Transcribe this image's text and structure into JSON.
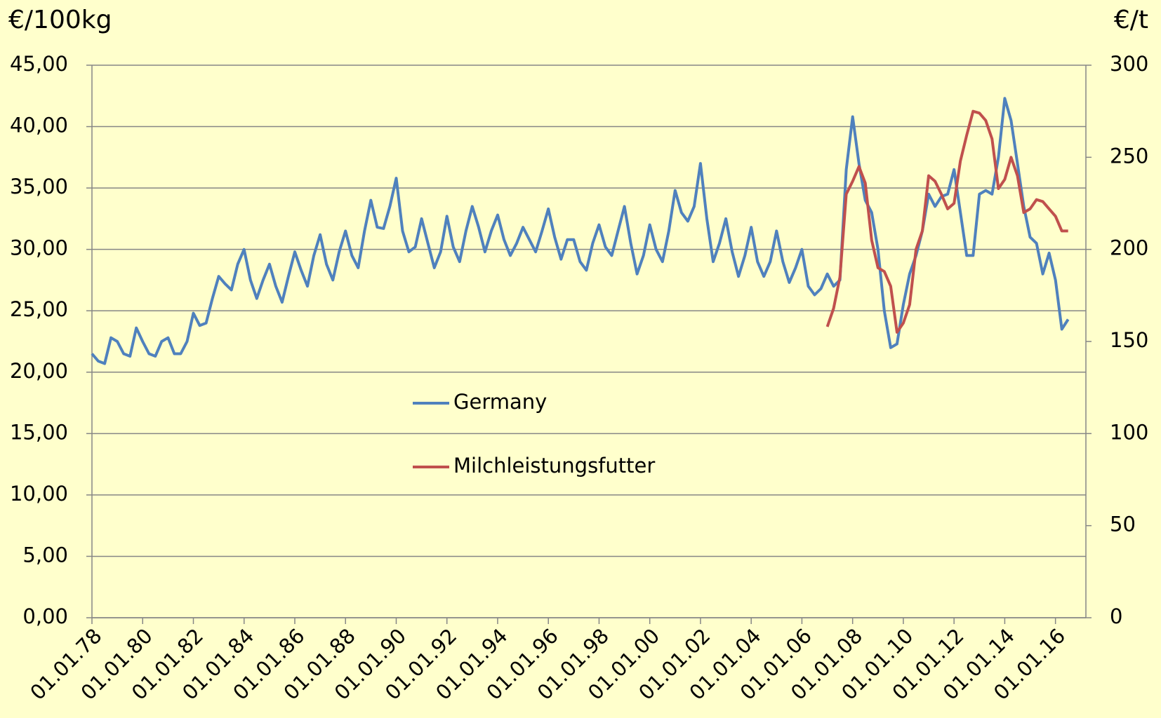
{
  "chart_data": {
    "type": "line",
    "y_label": "€/100kg",
    "y2_label": "€/t",
    "xlim": [
      1978,
      2017.2
    ],
    "xticks": [
      {
        "value": 1978,
        "label": "01.01.78"
      },
      {
        "value": 1980,
        "label": "01.01.80"
      },
      {
        "value": 1982,
        "label": "01.01.82"
      },
      {
        "value": 1984,
        "label": "01.01.84"
      },
      {
        "value": 1986,
        "label": "01.01.86"
      },
      {
        "value": 1988,
        "label": "01.01.88"
      },
      {
        "value": 1990,
        "label": "01.01.90"
      },
      {
        "value": 1992,
        "label": "01.01.92"
      },
      {
        "value": 1994,
        "label": "01.01.94"
      },
      {
        "value": 1996,
        "label": "01.01.96"
      },
      {
        "value": 1998,
        "label": "01.01.98"
      },
      {
        "value": 2000,
        "label": "01.01.00"
      },
      {
        "value": 2002,
        "label": "01.01.02"
      },
      {
        "value": 2004,
        "label": "01.01.04"
      },
      {
        "value": 2006,
        "label": "01.01.06"
      },
      {
        "value": 2008,
        "label": "01.01.08"
      },
      {
        "value": 2010,
        "label": "01.01.10"
      },
      {
        "value": 2012,
        "label": "01.01.12"
      },
      {
        "value": 2014,
        "label": "01.01.14"
      },
      {
        "value": 2016,
        "label": "01.01.16"
      }
    ],
    "ylim": [
      0,
      45
    ],
    "yticks": [
      {
        "value": 0,
        "label": "0,00"
      },
      {
        "value": 5,
        "label": "5,00"
      },
      {
        "value": 10,
        "label": "10,00"
      },
      {
        "value": 15,
        "label": "15,00"
      },
      {
        "value": 20,
        "label": "20,00"
      },
      {
        "value": 25,
        "label": "25,00"
      },
      {
        "value": 30,
        "label": "30,00"
      },
      {
        "value": 35,
        "label": "35,00"
      },
      {
        "value": 40,
        "label": "40,00"
      },
      {
        "value": 45,
        "label": "45,00"
      }
    ],
    "y2lim": [
      0,
      300
    ],
    "y2ticks": [
      0,
      50,
      100,
      150,
      200,
      250,
      300
    ],
    "grid": true,
    "legend": "center-left",
    "x": [
      1978,
      1978.25,
      1978.5,
      1978.75,
      1979,
      1979.25,
      1979.5,
      1979.75,
      1980,
      1980.25,
      1980.5,
      1980.75,
      1981,
      1981.25,
      1981.5,
      1981.75,
      1982,
      1982.25,
      1982.5,
      1982.75,
      1983,
      1983.25,
      1983.5,
      1983.75,
      1984,
      1984.25,
      1984.5,
      1984.75,
      1985,
      1985.25,
      1985.5,
      1985.75,
      1986,
      1986.25,
      1986.5,
      1986.75,
      1987,
      1987.25,
      1987.5,
      1987.75,
      1988,
      1988.25,
      1988.5,
      1988.75,
      1989,
      1989.25,
      1989.5,
      1989.75,
      1990,
      1990.25,
      1990.5,
      1990.75,
      1991,
      1991.25,
      1991.5,
      1991.75,
      1992,
      1992.25,
      1992.5,
      1992.75,
      1993,
      1993.25,
      1993.5,
      1993.75,
      1994,
      1994.25,
      1994.5,
      1994.75,
      1995,
      1995.25,
      1995.5,
      1995.75,
      1996,
      1996.25,
      1996.5,
      1996.75,
      1997,
      1997.25,
      1997.5,
      1997.75,
      1998,
      1998.25,
      1998.5,
      1998.75,
      1999,
      1999.25,
      1999.5,
      1999.75,
      2000,
      2000.25,
      2000.5,
      2000.75,
      2001,
      2001.25,
      2001.5,
      2001.75,
      2002,
      2002.25,
      2002.5,
      2002.75,
      2003,
      2003.25,
      2003.5,
      2003.75,
      2004,
      2004.25,
      2004.5,
      2004.75,
      2005,
      2005.25,
      2005.5,
      2005.75,
      2006,
      2006.25,
      2006.5,
      2006.75,
      2007,
      2007.25,
      2007.5,
      2007.75,
      2008,
      2008.25,
      2008.5,
      2008.75,
      2009,
      2009.25,
      2009.5,
      2009.75,
      2010,
      2010.25,
      2010.5,
      2010.75,
      2011,
      2011.25,
      2011.5,
      2011.75,
      2012,
      2012.25,
      2012.5,
      2012.75,
      2013,
      2013.25,
      2013.5,
      2013.75,
      2014,
      2014.25,
      2014.5,
      2014.75,
      2015,
      2015.25,
      2015.5,
      2015.75,
      2016,
      2016.25,
      2016.5
    ],
    "series": [
      {
        "name": "Germany",
        "color": "#4f81bd",
        "values": [
          21.5,
          20.9,
          20.7,
          22.8,
          22.5,
          21.5,
          21.3,
          23.6,
          22.5,
          21.5,
          21.3,
          22.5,
          22.8,
          21.5,
          21.5,
          22.5,
          24.8,
          23.8,
          24.0,
          26.0,
          27.8,
          27.2,
          26.7,
          28.8,
          30.0,
          27.5,
          26.0,
          27.5,
          28.8,
          27.0,
          25.7,
          27.8,
          29.8,
          28.3,
          27.0,
          29.5,
          31.2,
          28.8,
          27.5,
          29.8,
          31.5,
          29.5,
          28.5,
          31.5,
          34.0,
          31.8,
          31.7,
          33.5,
          35.8,
          31.5,
          29.8,
          30.2,
          32.5,
          30.5,
          28.5,
          29.8,
          32.7,
          30.2,
          29.0,
          31.5,
          33.5,
          31.8,
          29.8,
          31.5,
          32.8,
          30.8,
          29.5,
          30.5,
          31.8,
          30.8,
          29.8,
          31.5,
          33.3,
          31.0,
          29.2,
          30.8,
          30.8,
          29.0,
          28.3,
          30.5,
          32.0,
          30.2,
          29.5,
          31.5,
          33.5,
          30.5,
          28.0,
          29.5,
          32.0,
          30.0,
          29.0,
          31.5,
          34.8,
          33.0,
          32.3,
          33.5,
          37.0,
          32.5,
          29.0,
          30.5,
          32.5,
          29.8,
          27.8,
          29.5,
          31.8,
          29.0,
          27.8,
          29.0,
          31.5,
          29.0,
          27.3,
          28.5,
          30.0,
          27.0,
          26.3,
          26.8,
          28.0,
          27.0,
          27.5,
          36.5,
          40.8,
          37.0,
          34.0,
          33.0,
          30.0,
          25.0,
          22.0,
          22.3,
          25.5,
          28.0,
          29.5,
          31.5,
          34.5,
          33.5,
          34.3,
          34.5,
          36.5,
          33.0,
          29.5,
          29.5,
          34.5,
          34.8,
          34.5,
          37.5,
          42.3,
          40.5,
          37.0,
          33.5,
          31.0,
          30.5,
          28.0,
          29.7,
          27.5,
          23.5,
          24.3
        ]
      },
      {
        "name": "Milchleistungsfutter",
        "color": "#c0504d",
        "axis": "y2",
        "values": [
          null,
          null,
          null,
          null,
          null,
          null,
          null,
          null,
          null,
          null,
          null,
          null,
          null,
          null,
          null,
          null,
          null,
          null,
          null,
          null,
          null,
          null,
          null,
          null,
          null,
          null,
          null,
          null,
          null,
          null,
          null,
          null,
          null,
          null,
          null,
          null,
          null,
          null,
          null,
          null,
          null,
          null,
          null,
          null,
          null,
          null,
          null,
          null,
          null,
          null,
          null,
          null,
          null,
          null,
          null,
          null,
          null,
          null,
          null,
          null,
          null,
          null,
          null,
          null,
          null,
          null,
          null,
          null,
          null,
          null,
          null,
          null,
          null,
          null,
          null,
          null,
          null,
          null,
          null,
          null,
          null,
          null,
          null,
          null,
          null,
          null,
          null,
          null,
          null,
          null,
          null,
          null,
          null,
          null,
          null,
          null,
          null,
          null,
          null,
          null,
          null,
          null,
          null,
          null,
          null,
          null,
          null,
          null,
          null,
          null,
          null,
          null,
          null,
          null,
          null,
          null,
          158,
          168,
          185,
          230,
          237,
          245,
          236,
          205,
          190,
          188,
          180,
          155,
          160,
          170,
          200,
          210,
          240,
          237,
          230,
          222,
          225,
          248,
          262,
          275,
          274,
          270,
          260,
          233,
          238,
          250,
          240,
          220,
          222,
          227,
          226,
          222,
          218,
          210,
          210
        ]
      }
    ]
  }
}
